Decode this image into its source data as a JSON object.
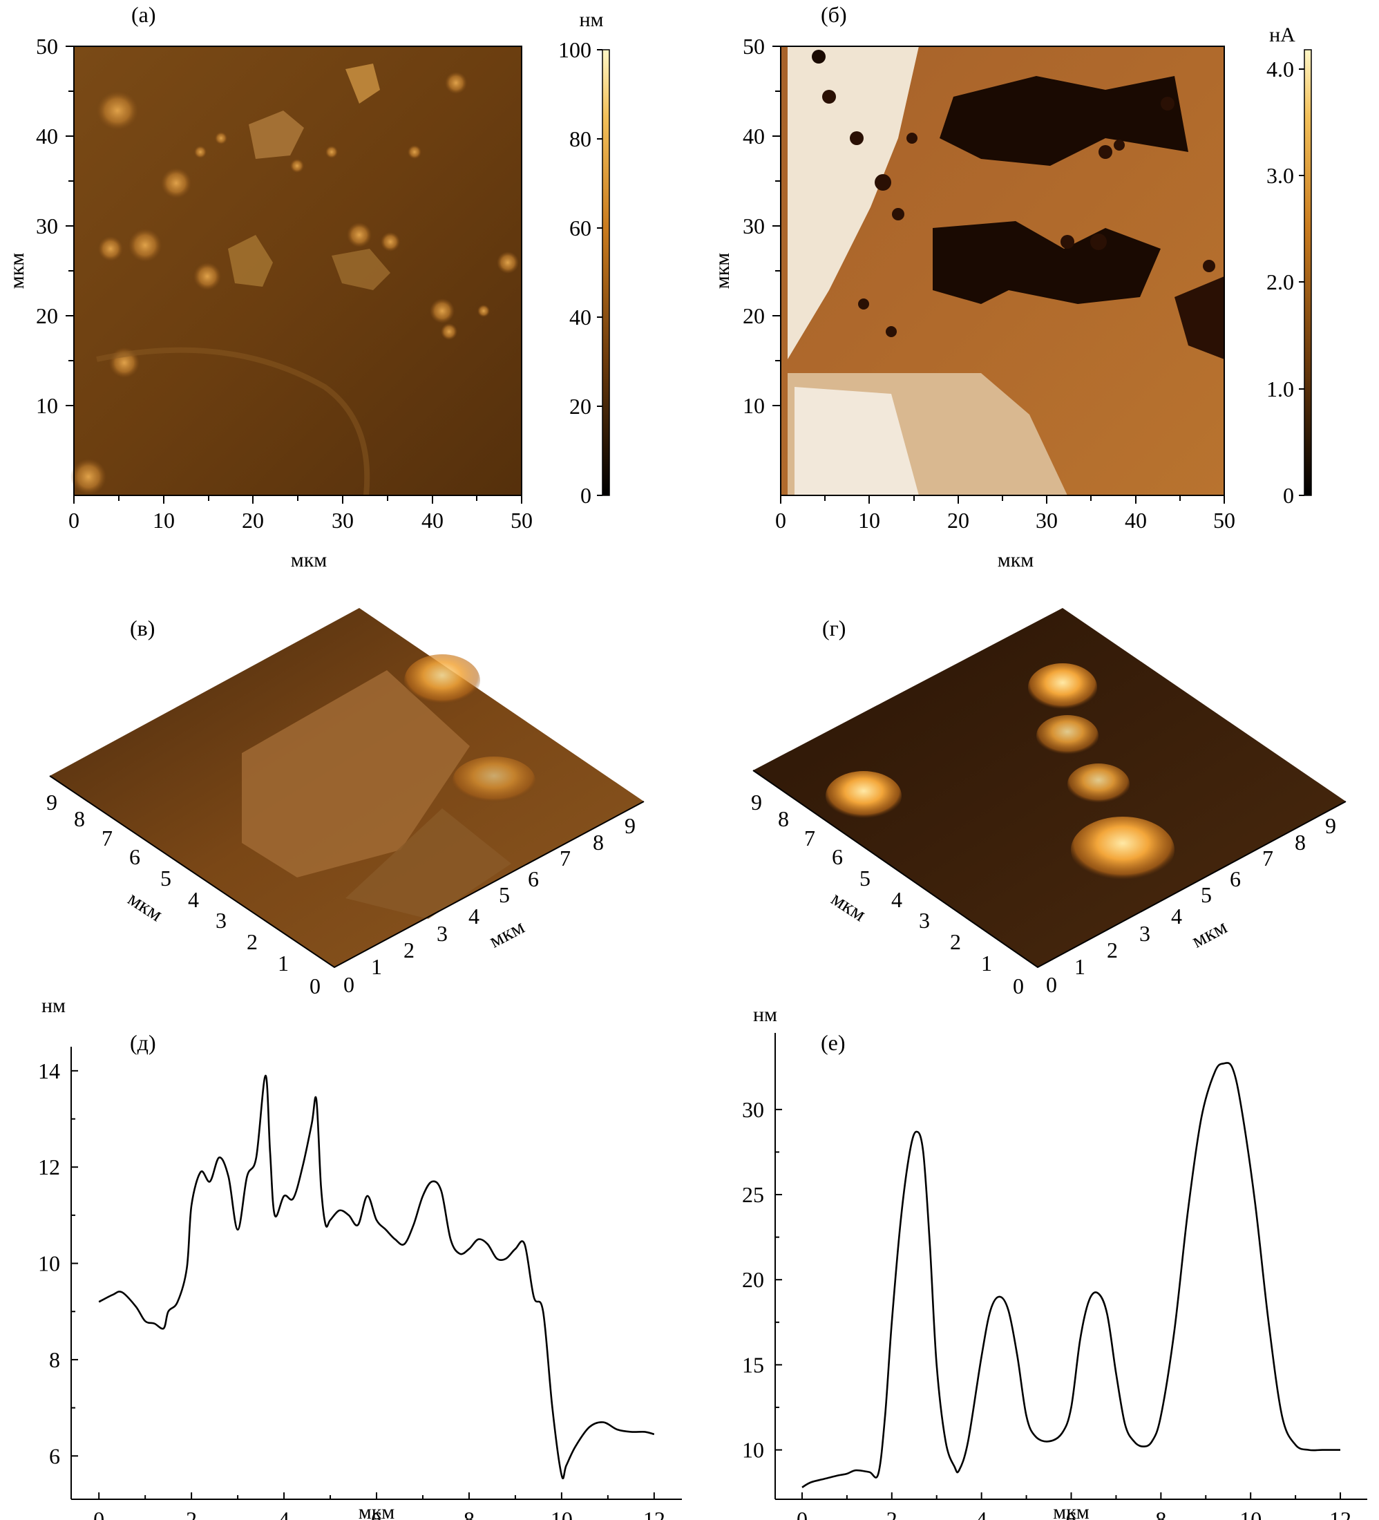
{
  "panels": {
    "a": {
      "label": "(а)",
      "xlabel": "мкм",
      "ylabel": "мкм",
      "x_ticks": [
        "0",
        "10",
        "20",
        "30",
        "40",
        "50"
      ],
      "y_ticks": [
        "10",
        "20",
        "30",
        "40",
        "50"
      ],
      "colorbar": {
        "unit": "нм",
        "ticks": [
          "0",
          "20",
          "40",
          "60",
          "80",
          "100"
        ]
      }
    },
    "b": {
      "label": "(б)",
      "xlabel": "мкм",
      "ylabel": "мкм",
      "x_ticks": [
        "0",
        "10",
        "20",
        "30",
        "40",
        "50"
      ],
      "y_ticks": [
        "10",
        "20",
        "30",
        "40",
        "50"
      ],
      "colorbar": {
        "unit": "нА",
        "ticks": [
          "0",
          "1.0",
          "2.0",
          "3.0",
          "4.0"
        ]
      }
    },
    "c": {
      "label": "(в)",
      "axis_label": "мкм",
      "ticks": [
        "0",
        "1",
        "2",
        "3",
        "4",
        "5",
        "6",
        "7",
        "8",
        "9"
      ]
    },
    "d3": {
      "label": "(г)",
      "axis_label": "мкм",
      "ticks": [
        "0",
        "1",
        "2",
        "3",
        "4",
        "5",
        "6",
        "7",
        "8",
        "9"
      ]
    }
  },
  "chart_data": [
    {
      "panel": "(д)",
      "type": "line",
      "xlabel": "мкм",
      "ylabel": "нм",
      "xlim": [
        -0.6,
        12.6
      ],
      "ylim": [
        5.1,
        14.5
      ],
      "x_ticks": [
        "0",
        "2",
        "4",
        "6",
        "8",
        "10",
        "12"
      ],
      "y_ticks": [
        "6",
        "8",
        "10",
        "12",
        "14"
      ],
      "x": [
        0,
        0.3,
        0.5,
        0.8,
        1.0,
        1.2,
        1.4,
        1.5,
        1.7,
        1.9,
        2.0,
        2.2,
        2.4,
        2.6,
        2.8,
        3.0,
        3.2,
        3.4,
        3.6,
        3.7,
        3.8,
        4.0,
        4.2,
        4.4,
        4.6,
        4.7,
        4.8,
        4.9,
        5.0,
        5.2,
        5.4,
        5.6,
        5.8,
        6.0,
        6.2,
        6.4,
        6.6,
        6.8,
        7.0,
        7.2,
        7.4,
        7.6,
        7.8,
        8.0,
        8.2,
        8.4,
        8.6,
        8.8,
        9.0,
        9.2,
        9.4,
        9.6,
        9.8,
        10.0,
        10.1,
        10.3,
        10.6,
        10.9,
        11.2,
        11.5,
        11.8,
        12.0
      ],
      "y": [
        9.2,
        9.35,
        9.4,
        9.1,
        8.8,
        8.75,
        8.65,
        9.0,
        9.2,
        9.9,
        11.2,
        11.9,
        11.7,
        12.2,
        11.8,
        10.7,
        11.8,
        12.2,
        13.9,
        12.3,
        11.0,
        11.4,
        11.35,
        12.0,
        12.9,
        13.4,
        11.6,
        10.8,
        10.9,
        11.1,
        11.0,
        10.8,
        11.4,
        10.9,
        10.7,
        10.5,
        10.4,
        10.8,
        11.4,
        11.7,
        11.5,
        10.5,
        10.2,
        10.3,
        10.5,
        10.4,
        10.1,
        10.1,
        10.3,
        10.4,
        9.3,
        9.0,
        7.0,
        5.6,
        5.8,
        6.2,
        6.6,
        6.7,
        6.55,
        6.5,
        6.5,
        6.45
      ]
    },
    {
      "panel": "(е)",
      "type": "line",
      "xlabel": "мкм",
      "ylabel": "нм",
      "xlim": [
        -0.6,
        12.6
      ],
      "ylim": [
        7.1,
        34.5
      ],
      "x_ticks": [
        "0",
        "2",
        "4",
        "6",
        "8",
        "10",
        "12"
      ],
      "y_ticks": [
        "10",
        "15",
        "20",
        "25",
        "30"
      ],
      "x": [
        0,
        0.2,
        0.5,
        0.8,
        1.0,
        1.2,
        1.5,
        1.7,
        1.85,
        2.0,
        2.2,
        2.4,
        2.55,
        2.7,
        2.85,
        3.0,
        3.2,
        3.4,
        3.5,
        3.7,
        4.0,
        4.2,
        4.4,
        4.6,
        4.8,
        5.0,
        5.2,
        5.5,
        5.8,
        6.0,
        6.2,
        6.4,
        6.6,
        6.8,
        7.0,
        7.2,
        7.4,
        7.6,
        7.8,
        8.0,
        8.3,
        8.6,
        8.9,
        9.2,
        9.4,
        9.6,
        9.8,
        10.1,
        10.4,
        10.7,
        11.0,
        11.3,
        11.6,
        12.0
      ],
      "y": [
        7.8,
        8.1,
        8.3,
        8.5,
        8.6,
        8.8,
        8.7,
        8.6,
        12.0,
        17.5,
        23.5,
        27.5,
        28.7,
        27.5,
        22.0,
        15.0,
        10.5,
        9.0,
        8.8,
        10.5,
        15.5,
        18.2,
        19.0,
        18.2,
        15.5,
        12.0,
        10.8,
        10.5,
        11.0,
        12.5,
        16.5,
        18.8,
        19.2,
        18.0,
        14.5,
        11.5,
        10.5,
        10.2,
        10.5,
        12.0,
        17.0,
        24.0,
        29.5,
        32.2,
        32.7,
        32.4,
        30.0,
        24.5,
        17.5,
        12.0,
        10.3,
        10.0,
        10.0,
        10.0
      ]
    }
  ]
}
